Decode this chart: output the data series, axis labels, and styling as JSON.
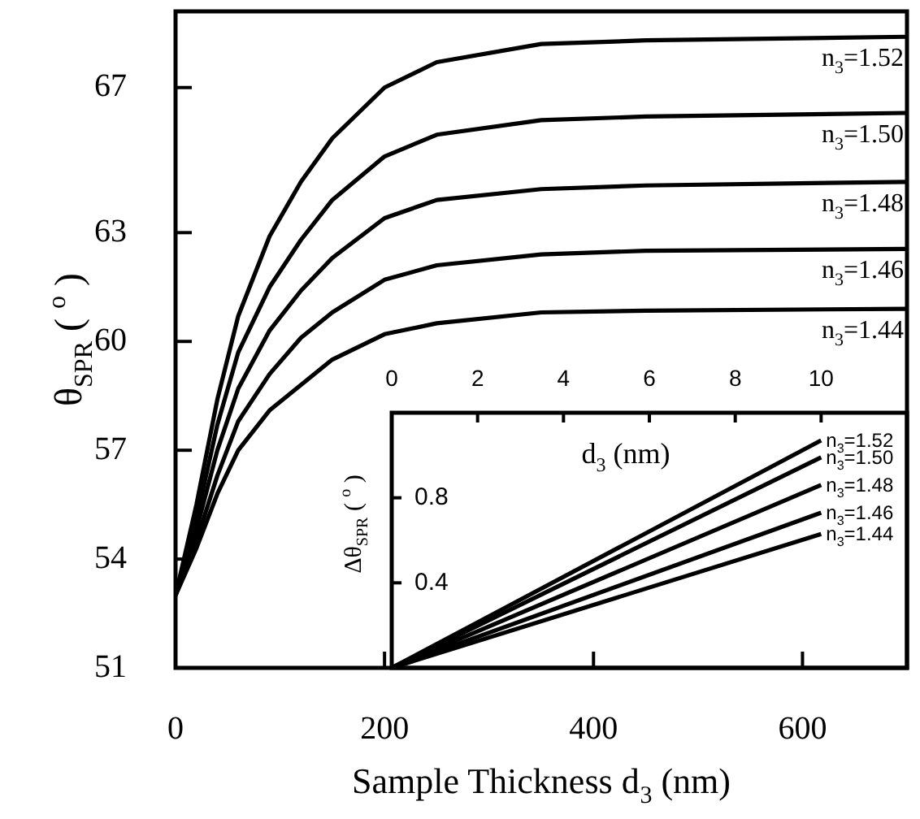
{
  "chart_data": [
    {
      "type": "line",
      "xlabel": "Sample Thickness d$_{3}$ (nm)",
      "ylabel": "θ$_{SPR}$ ( $^{o}$ )",
      "marker": "none",
      "line_style": "solid",
      "x": [
        0,
        20,
        40,
        60,
        90,
        120,
        150,
        200,
        250,
        350,
        450,
        700
      ],
      "xlim": [
        0,
        700
      ],
      "xticks": [
        0,
        200,
        400,
        600
      ],
      "ylim": [
        51,
        69.1
      ],
      "yticks": [
        51,
        54,
        57,
        60,
        63,
        67
      ],
      "series": [
        {
          "name": "n$_{3}$=1.52",
          "color": "#000000",
          "values": [
            53,
            55.5,
            58.4,
            60.7,
            62.9,
            64.4,
            65.6,
            67.0,
            67.7,
            68.2,
            68.3,
            68.4
          ]
        },
        {
          "name": "n$_{3}$=1.50",
          "color": "#000000",
          "values": [
            53,
            55.1,
            57.7,
            59.7,
            61.5,
            62.8,
            63.9,
            65.1,
            65.7,
            66.1,
            66.2,
            66.3
          ]
        },
        {
          "name": "n$_{3}$=1.48",
          "color": "#000000",
          "values": [
            53,
            54.8,
            57.0,
            58.7,
            60.3,
            61.4,
            62.3,
            63.4,
            63.9,
            64.2,
            64.3,
            64.4
          ]
        },
        {
          "name": "n$_{3}$=1.46",
          "color": "#000000",
          "values": [
            53,
            54.5,
            56.3,
            57.8,
            59.1,
            60.1,
            60.8,
            61.7,
            62.1,
            62.4,
            62.5,
            62.55
          ]
        },
        {
          "name": "n$_{3}$=1.44",
          "color": "#000000",
          "values": [
            53,
            54.3,
            55.8,
            57.0,
            58.1,
            58.8,
            59.5,
            60.2,
            60.5,
            60.8,
            60.85,
            60.9
          ]
        }
      ]
    },
    {
      "type": "line",
      "xlabel": "d$_{3}$ (nm)",
      "ylabel": "Δθ$_{SPR}$ ( $^{o}$ )",
      "marker": "none",
      "line_style": "solid",
      "x": [
        0,
        10
      ],
      "xlim": [
        0,
        12
      ],
      "xticks": [
        0,
        2,
        4,
        6,
        8,
        10
      ],
      "ylim": [
        0,
        1.2
      ],
      "yticks": [
        0.4,
        0.8
      ],
      "series": [
        {
          "name": "n$_{3}$=1.52",
          "color": "#000000",
          "values": [
            0,
            1.07
          ]
        },
        {
          "name": "n$_{3}$=1.50",
          "color": "#000000",
          "values": [
            0,
            0.99
          ]
        },
        {
          "name": "n$_{3}$=1.48",
          "color": "#000000",
          "values": [
            0,
            0.86
          ]
        },
        {
          "name": "n$_{3}$=1.46",
          "color": "#000000",
          "values": [
            0,
            0.73
          ]
        },
        {
          "name": "n$_{3}$=1.44",
          "color": "#000000",
          "values": [
            0,
            0.63
          ]
        }
      ]
    }
  ]
}
